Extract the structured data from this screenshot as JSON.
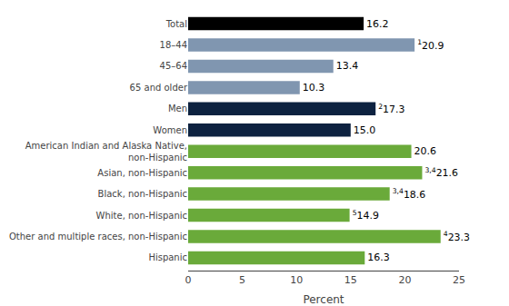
{
  "chart_data": {
    "type": "bar",
    "orientation": "horizontal",
    "xlabel": "Percent",
    "categories": [
      "Hispanic",
      "Other and multiple races, non-Hispanic",
      "White, non-Hispanic",
      "Black, non-Hispanic",
      "Asian, non-Hispanic",
      "American Indian and Alaska Native,\nnon-Hispanic",
      "Women",
      "Men",
      "65 and older",
      "45–64",
      "18–44",
      "Total"
    ],
    "values": [
      16.3,
      23.3,
      14.9,
      18.6,
      21.6,
      20.6,
      15.0,
      17.3,
      10.3,
      13.4,
      20.9,
      16.2
    ],
    "value_labels": [
      "16.3",
      "23.3",
      "14.9",
      "18.6",
      "21.6",
      "20.6",
      "15.0",
      "17.3",
      "10.3",
      "13.4",
      "20.9",
      "16.2"
    ],
    "superscripts": [
      null,
      "4",
      "5",
      "3,4",
      "3,4",
      null,
      null,
      "2",
      null,
      null,
      "1",
      null
    ],
    "data_labels": true,
    "colors": [
      "#6aaa3a",
      "#6aaa3a",
      "#6aaa3a",
      "#6aaa3a",
      "#6aaa3a",
      "#6aaa3a",
      "#0d2240",
      "#0d2240",
      "#8096b0",
      "#8096b0",
      "#8096b0",
      "#000000"
    ],
    "xlim": [
      0,
      25
    ],
    "xticks": [
      0,
      5,
      10,
      15,
      20,
      25
    ],
    "grid": false
  }
}
